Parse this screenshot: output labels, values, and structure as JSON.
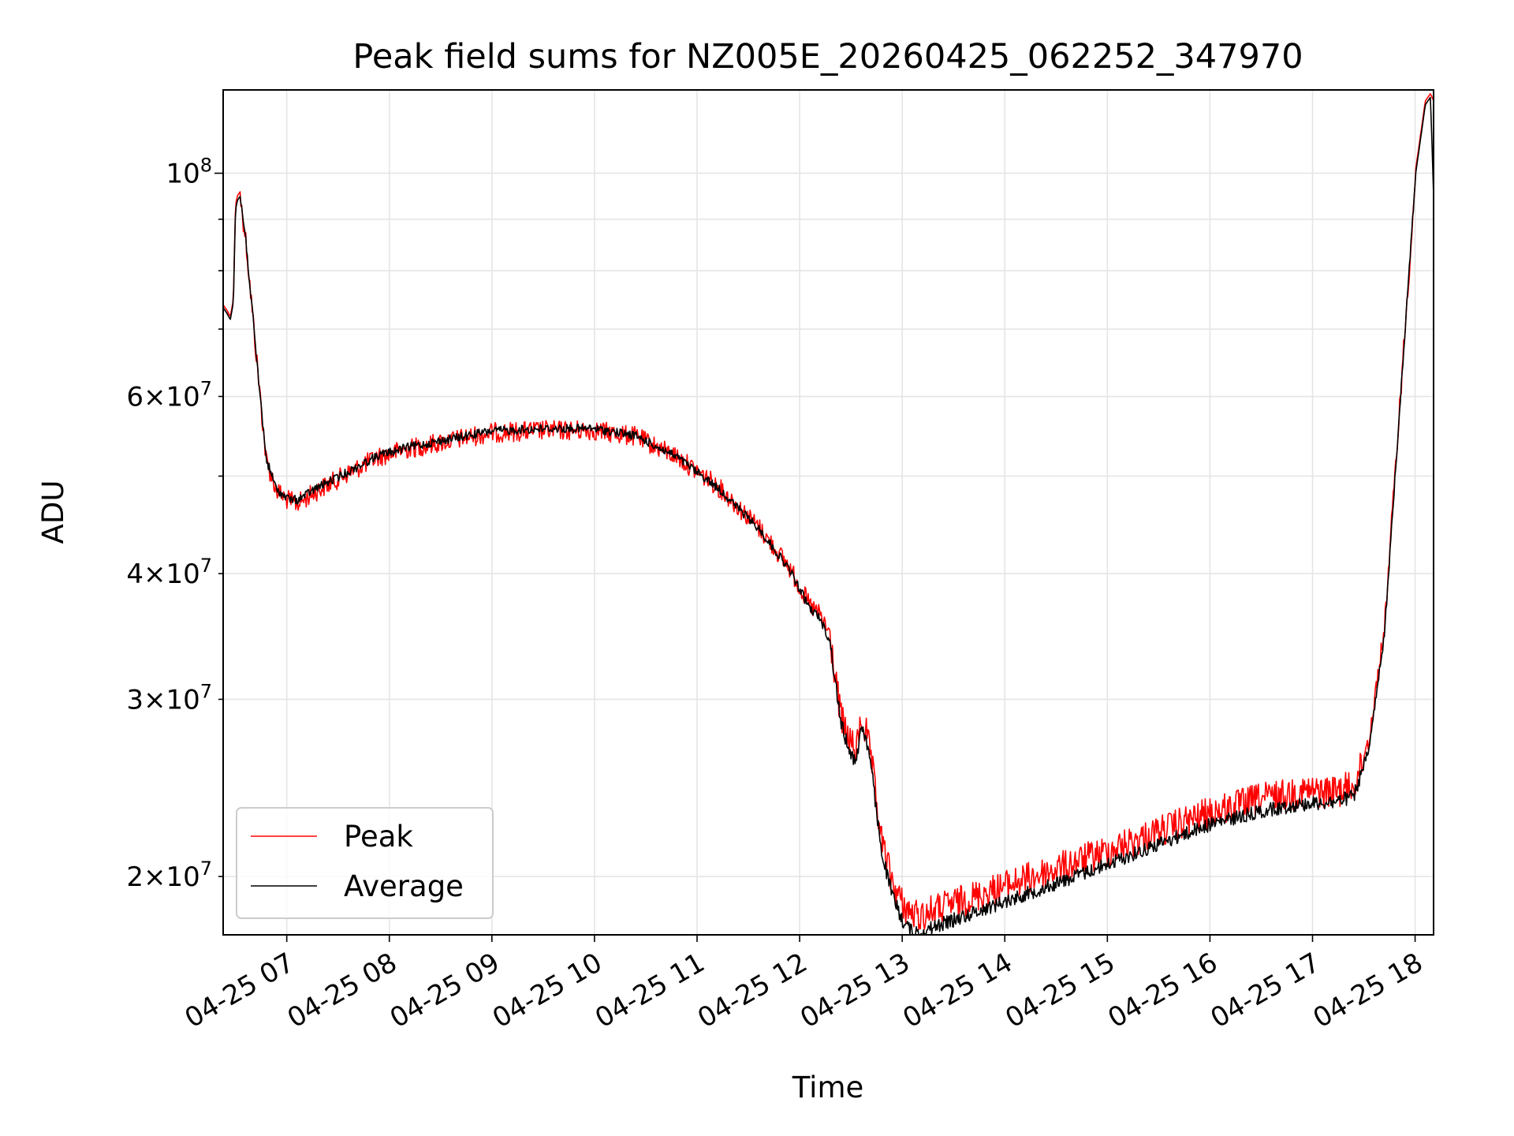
{
  "chart_data": {
    "type": "line",
    "title": "Peak field sums for NZ005E_20260425_062252_347970",
    "xlabel": "Time",
    "ylabel": "ADU",
    "yscale": "log",
    "xlim_hours": [
      6.38,
      18.18
    ],
    "ylim": [
      17500000,
      121000000
    ],
    "grid": true,
    "legend_location": "lower-left",
    "x_ticks": [
      {
        "value": 7,
        "label": "04-25 07"
      },
      {
        "value": 8,
        "label": "04-25 08"
      },
      {
        "value": 9,
        "label": "04-25 09"
      },
      {
        "value": 10,
        "label": "04-25 10"
      },
      {
        "value": 11,
        "label": "04-25 11"
      },
      {
        "value": 12,
        "label": "04-25 12"
      },
      {
        "value": 13,
        "label": "04-25 13"
      },
      {
        "value": 14,
        "label": "04-25 14"
      },
      {
        "value": 15,
        "label": "04-25 15"
      },
      {
        "value": 16,
        "label": "04-25 16"
      },
      {
        "value": 17,
        "label": "04-25 17"
      },
      {
        "value": 18,
        "label": "04-25 18"
      }
    ],
    "y_ticks_major": [
      {
        "value": 100000000,
        "base": "10",
        "exp": "8"
      }
    ],
    "y_ticks_minor": [
      {
        "value": 20000000,
        "mant": "2",
        "base": "10",
        "exp": "7"
      },
      {
        "value": 30000000,
        "mant": "3",
        "base": "10",
        "exp": "7"
      },
      {
        "value": 40000000,
        "mant": "4",
        "base": "10",
        "exp": "7"
      },
      {
        "value": 50000000,
        "mant": "",
        "base": "",
        "exp": ""
      },
      {
        "value": 60000000,
        "mant": "6",
        "base": "10",
        "exp": "7"
      },
      {
        "value": 70000000,
        "mant": "",
        "base": "",
        "exp": ""
      },
      {
        "value": 80000000,
        "mant": "",
        "base": "",
        "exp": ""
      },
      {
        "value": 90000000,
        "mant": "",
        "base": "",
        "exp": ""
      }
    ],
    "series": [
      {
        "name": "Peak",
        "color": "#ff0000",
        "noise": 0.045,
        "x": [
          6.38,
          6.42,
          6.45,
          6.48,
          6.5,
          6.52,
          6.55,
          6.6,
          6.7,
          6.8,
          6.9,
          7.0,
          7.1,
          7.3,
          7.6,
          7.9,
          8.2,
          8.6,
          9.0,
          9.5,
          10.0,
          10.4,
          10.8,
          11.2,
          11.6,
          11.9,
          12.1,
          12.2,
          12.3,
          12.4,
          12.45,
          12.5,
          12.55,
          12.6,
          12.65,
          12.7,
          12.75,
          12.8,
          12.9,
          13.0,
          13.1,
          13.2,
          13.3,
          13.5,
          14.0,
          14.5,
          15.0,
          15.5,
          16.0,
          16.5,
          16.9,
          17.2,
          17.4,
          17.55,
          17.7,
          17.85,
          18.0,
          18.1,
          18.15,
          18.18
        ],
        "values": [
          74000000,
          73000000,
          72000000,
          75000000,
          93000000,
          95000000,
          96000000,
          88000000,
          68000000,
          53000000,
          49500000,
          48500000,
          48000000,
          49500000,
          51500000,
          53500000,
          54500000,
          55500000,
          56500000,
          56800000,
          56800000,
          56000000,
          53500000,
          50000000,
          45500000,
          41500000,
          38000000,
          37200000,
          35500000,
          30000000,
          28800000,
          28200000,
          27500000,
          29800000,
          28800000,
          27000000,
          24500000,
          22500000,
          20500000,
          19500000,
          19000000,
          19000000,
          19200000,
          19500000,
          20300000,
          21100000,
          22000000,
          23000000,
          24000000,
          24800000,
          25200000,
          25200000,
          25500000,
          28000000,
          36000000,
          60000000,
          100000000,
          118000000,
          120000000,
          118000000
        ]
      },
      {
        "name": "Average",
        "color": "#000000",
        "noise": 0.02,
        "x": [
          6.38,
          6.42,
          6.45,
          6.48,
          6.5,
          6.52,
          6.55,
          6.6,
          6.7,
          6.8,
          6.9,
          7.0,
          7.1,
          7.3,
          7.6,
          7.9,
          8.2,
          8.6,
          9.0,
          9.5,
          10.0,
          10.4,
          10.8,
          11.2,
          11.6,
          11.9,
          12.1,
          12.2,
          12.3,
          12.4,
          12.45,
          12.5,
          12.55,
          12.6,
          12.65,
          12.7,
          12.75,
          12.8,
          12.9,
          13.0,
          13.1,
          13.2,
          13.3,
          13.5,
          14.0,
          14.5,
          15.0,
          15.5,
          16.0,
          16.5,
          16.9,
          17.2,
          17.4,
          17.55,
          17.7,
          17.85,
          18.0,
          18.1,
          18.15,
          18.18
        ],
        "values": [
          73500000,
          72500000,
          71500000,
          74500000,
          92000000,
          94000000,
          95000000,
          87000000,
          67000000,
          52500000,
          49000000,
          48000000,
          47800000,
          49200000,
          51000000,
          53000000,
          54000000,
          55000000,
          56000000,
          56300000,
          56300000,
          55400000,
          52800000,
          49200000,
          44800000,
          40800000,
          37300000,
          36500000,
          34500000,
          29000000,
          27800000,
          27000000,
          26300000,
          28800000,
          27800000,
          26000000,
          23500000,
          21500000,
          19500000,
          18400000,
          17900000,
          17900000,
          18100000,
          18400000,
          19200000,
          20000000,
          20900000,
          21900000,
          22900000,
          23600000,
          24000000,
          24100000,
          24400000,
          27000000,
          35000000,
          59000000,
          99000000,
          117000000,
          119000000,
          95000000
        ]
      }
    ],
    "legend": [
      {
        "name": "Peak",
        "color": "#ff0000"
      },
      {
        "name": "Average",
        "color": "#000000"
      }
    ]
  }
}
